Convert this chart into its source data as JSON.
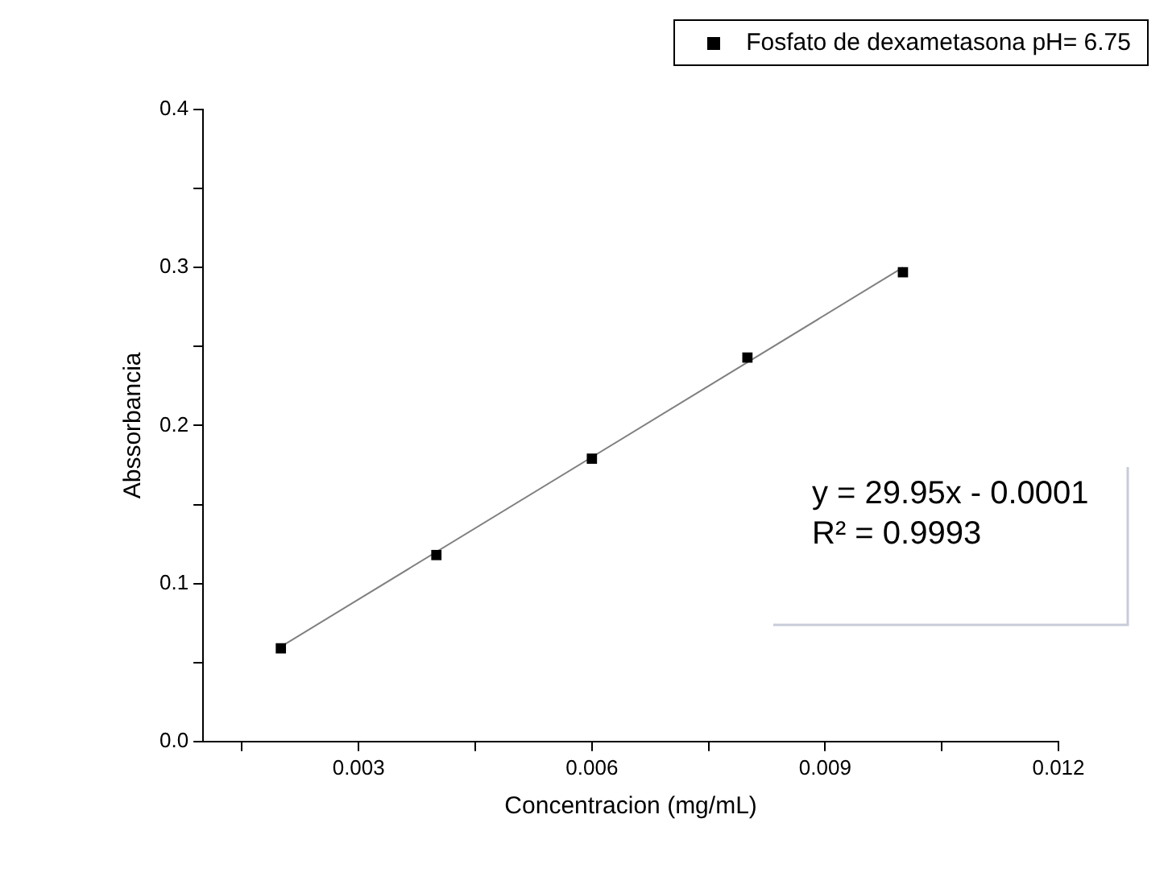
{
  "chart_data": {
    "type": "scatter",
    "xlabel": "Concentracion (mg/mL)",
    "ylabel": "Abssorbancia",
    "xlim": [
      0.001,
      0.012
    ],
    "xticks": [
      {
        "value": 0.0015,
        "label": null
      },
      {
        "value": 0.003,
        "label": "0.003"
      },
      {
        "value": 0.0045,
        "label": null
      },
      {
        "value": 0.006,
        "label": "0.006"
      },
      {
        "value": 0.0075,
        "label": null
      },
      {
        "value": 0.009,
        "label": "0.009"
      },
      {
        "value": 0.0105,
        "label": null
      },
      {
        "value": 0.012,
        "label": "0.012"
      }
    ],
    "ylim": [
      0,
      0.4
    ],
    "yticks": [
      {
        "value": 0,
        "label": "0.0"
      },
      {
        "value": 0.05,
        "label": null
      },
      {
        "value": 0.1,
        "label": "0.1"
      },
      {
        "value": 0.15,
        "label": null
      },
      {
        "value": 0.2,
        "label": "0.2"
      },
      {
        "value": 0.25,
        "label": null
      },
      {
        "value": 0.3,
        "label": "0.3"
      },
      {
        "value": 0.35,
        "label": null
      },
      {
        "value": 0.4,
        "label": "0.4"
      }
    ],
    "series": [
      {
        "name": "Fosfato de dexametasona pH= 6.75",
        "color": "#000000",
        "x": [
          0.002,
          0.004,
          0.006,
          0.008,
          0.01
        ],
        "values": [
          0.059,
          0.118,
          0.179,
          0.243,
          0.297
        ]
      },
      {
        "type": "line",
        "marker": "none",
        "color": "#808080",
        "x": [
          0.002,
          0.01
        ],
        "values": [
          0.06,
          0.3
        ]
      }
    ],
    "annotations": [
      "y = 29.95x - 0.0001",
      "R² = 0.9993"
    ],
    "marker": "square",
    "legend": "top right"
  }
}
